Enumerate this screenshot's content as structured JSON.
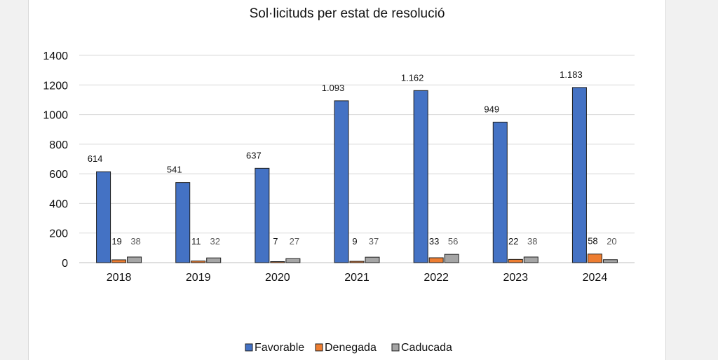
{
  "chart_data": {
    "type": "bar",
    "title": "Sol·licituds per estat de resolució",
    "categories": [
      "2018",
      "2019",
      "2020",
      "2021",
      "2022",
      "2023",
      "2024"
    ],
    "series": [
      {
        "name": "Favorable",
        "color": "#4472c4",
        "values": [
          614,
          541,
          637,
          1093,
          1162,
          949,
          1183
        ],
        "labels": [
          "614",
          "541",
          "637",
          "1.093",
          "1.162",
          "949",
          "1.183"
        ]
      },
      {
        "name": "Denegada",
        "color": "#ed7d31",
        "values": [
          19,
          11,
          7,
          9,
          33,
          22,
          58
        ],
        "labels": [
          "19",
          "11",
          "7",
          "9",
          "33",
          "22",
          "58"
        ]
      },
      {
        "name": "Caducada",
        "color": "#a5a5a5",
        "values": [
          38,
          32,
          27,
          37,
          56,
          38,
          20
        ],
        "labels": [
          "38",
          "32",
          "27",
          "37",
          "56",
          "38",
          "20"
        ]
      }
    ],
    "ylim": [
      0,
      1400
    ],
    "yticks": [
      "0",
      "200",
      "400",
      "600",
      "800",
      "1000",
      "1200",
      "1400"
    ],
    "ytick_values": [
      0,
      200,
      400,
      600,
      800,
      1000,
      1200,
      1400
    ],
    "grid": true,
    "legend_position": "bottom"
  }
}
